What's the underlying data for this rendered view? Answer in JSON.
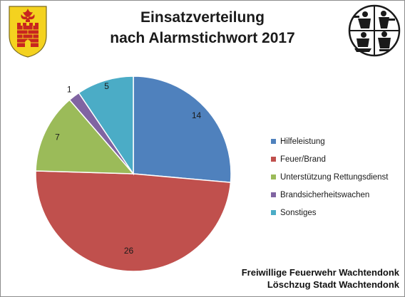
{
  "chart_data": {
    "type": "pie",
    "title_lines": [
      "Einsatzverteilung",
      "nach Alarmstichwort 2017"
    ],
    "slices": [
      {
        "label": "Hilfeleistung",
        "value": 14,
        "color": "#4f81bd"
      },
      {
        "label": "Feuer/Brand",
        "value": 26,
        "color": "#c0504d"
      },
      {
        "label": "Unterstützung Rettungsdienst",
        "value": 7,
        "color": "#9bbb59"
      },
      {
        "label": "Brandsicherheitswachen",
        "value": 1,
        "color": "#8064a2"
      },
      {
        "label": "Sonstiges",
        "value": 5,
        "color": "#4bacc6"
      }
    ],
    "legend_position": "right",
    "data_labels": true
  },
  "footer": {
    "line1": "Freiwillige Feuerwehr Wachtendonk",
    "line2": "Löschzug Stadt Wachtendonk"
  },
  "logos": {
    "left": "town-coat-of-arms",
    "right": "firefighter-emblem"
  }
}
